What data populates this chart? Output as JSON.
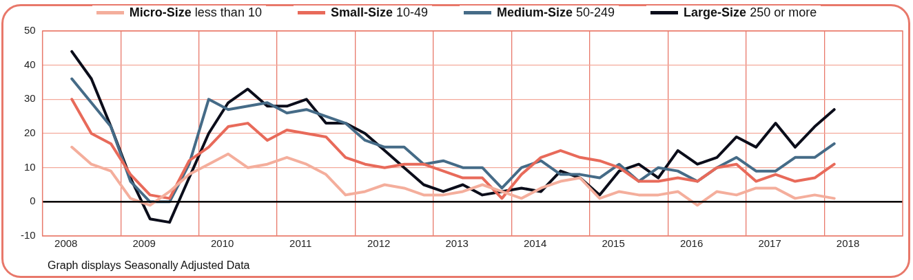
{
  "chart_data": {
    "type": "line",
    "x": [
      2008.375,
      2008.625,
      2008.875,
      2009.125,
      2009.375,
      2009.625,
      2009.875,
      2010.125,
      2010.375,
      2010.625,
      2010.875,
      2011.125,
      2011.375,
      2011.625,
      2011.875,
      2012.125,
      2012.375,
      2012.625,
      2012.875,
      2013.125,
      2013.375,
      2013.625,
      2013.875,
      2014.125,
      2014.375,
      2014.625,
      2014.875,
      2015.125,
      2015.375,
      2015.625,
      2015.875,
      2016.125,
      2016.375,
      2016.625,
      2016.875,
      2017.125,
      2017.375,
      2017.625,
      2017.875,
      2018.125
    ],
    "series": [
      {
        "name": "Micro-Size less than 10",
        "color": "#f4ae9c",
        "values": [
          16,
          11,
          9,
          1,
          -1,
          3,
          8,
          11,
          14,
          10,
          11,
          13,
          11,
          8,
          2,
          3,
          5,
          4,
          2,
          2,
          3,
          5,
          3,
          1,
          4,
          6,
          7,
          1,
          3,
          2,
          2,
          3,
          -1,
          3,
          2,
          4,
          4,
          1,
          2,
          1
        ]
      },
      {
        "name": "Small-Size 10-49",
        "color": "#e86a5a",
        "values": [
          30,
          20,
          17,
          8,
          2,
          1,
          12,
          16,
          22,
          23,
          18,
          21,
          20,
          19,
          13,
          11,
          10,
          11,
          11,
          9,
          7,
          7,
          1,
          8,
          13,
          15,
          13,
          12,
          10,
          6,
          6,
          7,
          6,
          10,
          11,
          6,
          8,
          6,
          7,
          11
        ]
      },
      {
        "name": "Medium-Size 50-249",
        "color": "#456b87",
        "values": [
          36,
          29,
          22,
          6,
          0,
          0,
          11,
          30,
          27,
          28,
          29,
          26,
          27,
          25,
          23,
          18,
          16,
          16,
          11,
          12,
          10,
          10,
          4,
          10,
          12,
          8,
          8,
          7,
          11,
          6,
          10,
          9,
          6,
          10,
          13,
          9,
          9,
          13,
          13,
          17
        ]
      },
      {
        "name": "Large-Size 250 or more",
        "color": "#0b0d1a",
        "values": [
          44,
          36,
          22,
          7,
          -5,
          -6,
          7,
          20,
          29,
          33,
          28,
          28,
          30,
          23,
          23,
          20,
          15,
          10,
          5,
          3,
          5,
          2,
          3,
          4,
          3,
          9,
          7,
          2,
          9,
          11,
          7,
          15,
          11,
          13,
          19,
          16,
          23,
          16,
          22,
          27
        ]
      }
    ],
    "xlim": [
      2008,
      2019
    ],
    "xticks": [
      {
        "value": 2008.3,
        "label": "2008"
      },
      {
        "value": 2009,
        "label": null
      },
      {
        "value": 2009.3,
        "label": "2009"
      },
      {
        "value": 2010,
        "label": null
      },
      {
        "value": 2010.3,
        "label": "2010"
      },
      {
        "value": 2011,
        "label": null
      },
      {
        "value": 2011.3,
        "label": "2011"
      },
      {
        "value": 2012,
        "label": null
      },
      {
        "value": 2012.3,
        "label": "2012"
      },
      {
        "value": 2013,
        "label": null
      },
      {
        "value": 2013.3,
        "label": "2013"
      },
      {
        "value": 2014,
        "label": null
      },
      {
        "value": 2014.3,
        "label": "2014"
      },
      {
        "value": 2015,
        "label": null
      },
      {
        "value": 2015.3,
        "label": "2015"
      },
      {
        "value": 2016,
        "label": null
      },
      {
        "value": 2016.3,
        "label": "2016"
      },
      {
        "value": 2017,
        "label": null
      },
      {
        "value": 2017.3,
        "label": "2017"
      },
      {
        "value": 2018,
        "label": null
      },
      {
        "value": 2018.3,
        "label": "2018"
      }
    ],
    "ylim": [
      -10,
      50
    ],
    "yticks": [
      -10,
      0,
      10,
      20,
      30,
      40,
      50
    ],
    "grid": true,
    "legend": "top",
    "marker": "none",
    "line_style": "solid",
    "ref_lines": [
      {
        "axis": "y",
        "value": 0,
        "color": "#000000"
      }
    ],
    "annotations": [
      "Graph displays Seasonally Adjusted Data"
    ]
  }
}
